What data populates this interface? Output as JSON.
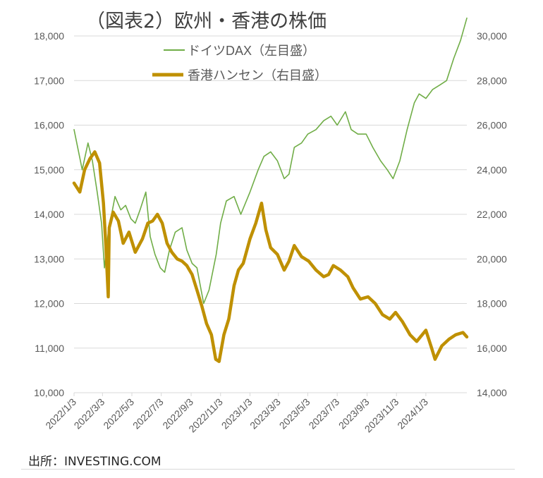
{
  "title": "（図表2）欧州・香港の株価",
  "source": "出所：INVESTING.COM",
  "colors": {
    "dax": "#70AD47",
    "hsi": "#BF9000",
    "grid": "#d9d9d9",
    "text": "#595959"
  },
  "chart_data": {
    "type": "line",
    "title": "（図表2）欧州・香港の株価",
    "x_ticks": [
      "2022/1/3",
      "2022/3/3",
      "2022/5/3",
      "2022/7/3",
      "2022/9/3",
      "2022/11/3",
      "2023/1/3",
      "2023/3/3",
      "2023/5/3",
      "2023/7/3",
      "2023/9/3",
      "2023/11/3",
      "2024/1/3"
    ],
    "y_left": {
      "ticks": [
        "10,000",
        "11,000",
        "12,000",
        "13,000",
        "14,000",
        "15,000",
        "16,000",
        "17,000",
        "18,000"
      ],
      "range": [
        10000,
        18000
      ]
    },
    "y_right": {
      "ticks": [
        "14,000",
        "16,000",
        "18,000",
        "20,000",
        "22,000",
        "24,000",
        "26,000",
        "28,000",
        "30,000"
      ],
      "range": [
        14000,
        30000
      ]
    },
    "grid": true,
    "legend_position": "top",
    "series": [
      {
        "name": "ドイツDAX（左目盛）",
        "axis": "left",
        "color": "#70AD47",
        "x": [
          "2022-01-03",
          "2022-01-20",
          "2022-02-01",
          "2022-02-10",
          "2022-02-20",
          "2022-03-01",
          "2022-03-07",
          "2022-03-15",
          "2022-03-29",
          "2022-04-10",
          "2022-04-20",
          "2022-05-01",
          "2022-05-10",
          "2022-05-20",
          "2022-06-01",
          "2022-06-10",
          "2022-06-20",
          "2022-07-01",
          "2022-07-10",
          "2022-07-20",
          "2022-08-01",
          "2022-08-15",
          "2022-08-25",
          "2022-09-05",
          "2022-09-15",
          "2022-09-29",
          "2022-10-10",
          "2022-10-25",
          "2022-11-03",
          "2022-11-15",
          "2022-12-01",
          "2022-12-15",
          "2023-01-03",
          "2023-01-20",
          "2023-02-01",
          "2023-02-15",
          "2023-03-01",
          "2023-03-15",
          "2023-03-25",
          "2023-04-05",
          "2023-04-20",
          "2023-05-03",
          "2023-05-20",
          "2023-06-05",
          "2023-06-20",
          "2023-07-03",
          "2023-07-20",
          "2023-08-01",
          "2023-08-15",
          "2023-09-01",
          "2023-09-15",
          "2023-10-01",
          "2023-10-15",
          "2023-10-27",
          "2023-11-10",
          "2023-11-25",
          "2023-12-10",
          "2023-12-20",
          "2024-01-03",
          "2024-01-17",
          "2024-02-01",
          "2024-02-15",
          "2024-03-01",
          "2024-03-15",
          "2024-03-28"
        ],
        "values": [
          15900,
          15000,
          15600,
          15200,
          14500,
          13800,
          12800,
          13600,
          14400,
          14100,
          14200,
          13900,
          13800,
          14100,
          14500,
          13500,
          13100,
          12800,
          12700,
          13200,
          13600,
          13700,
          13200,
          12900,
          12800,
          12000,
          12300,
          13100,
          13800,
          14300,
          14400,
          14000,
          14500,
          15000,
          15300,
          15400,
          15200,
          14800,
          14900,
          15500,
          15600,
          15800,
          15900,
          16100,
          16200,
          16000,
          16300,
          15900,
          15800,
          15800,
          15500,
          15200,
          15000,
          14800,
          15200,
          15900,
          16500,
          16700,
          16600,
          16800,
          16900,
          17000,
          17500,
          17900,
          18400
        ]
      },
      {
        "name": "香港ハンセン（右目盛）",
        "axis": "right",
        "color": "#BF9000",
        "x": [
          "2022-01-03",
          "2022-01-15",
          "2022-01-25",
          "2022-02-05",
          "2022-02-15",
          "2022-02-25",
          "2022-03-05",
          "2022-03-10",
          "2022-03-15",
          "2022-03-17",
          "2022-03-25",
          "2022-04-05",
          "2022-04-15",
          "2022-04-27",
          "2022-05-10",
          "2022-05-25",
          "2022-06-05",
          "2022-06-15",
          "2022-06-25",
          "2022-07-05",
          "2022-07-15",
          "2022-07-25",
          "2022-08-05",
          "2022-08-15",
          "2022-08-25",
          "2022-09-05",
          "2022-09-15",
          "2022-09-25",
          "2022-10-05",
          "2022-10-15",
          "2022-10-24",
          "2022-10-31",
          "2022-11-10",
          "2022-11-20",
          "2022-12-01",
          "2022-12-10",
          "2022-12-20",
          "2023-01-03",
          "2023-01-15",
          "2023-01-27",
          "2023-02-05",
          "2023-02-15",
          "2023-03-01",
          "2023-03-15",
          "2023-03-25",
          "2023-04-05",
          "2023-04-20",
          "2023-05-05",
          "2023-05-20",
          "2023-06-05",
          "2023-06-15",
          "2023-06-25",
          "2023-07-10",
          "2023-07-25",
          "2023-08-05",
          "2023-08-20",
          "2023-09-05",
          "2023-09-20",
          "2023-10-05",
          "2023-10-20",
          "2023-11-01",
          "2023-11-15",
          "2023-12-01",
          "2023-12-15",
          "2024-01-03",
          "2024-01-15",
          "2024-01-22",
          "2024-02-05",
          "2024-02-20",
          "2024-03-05",
          "2024-03-20",
          "2024-03-28"
        ],
        "values": [
          23400,
          23000,
          24000,
          24500,
          24800,
          24300,
          22500,
          20600,
          18300,
          21400,
          22100,
          21700,
          20700,
          21200,
          20300,
          20900,
          21600,
          21700,
          22000,
          21600,
          20700,
          20300,
          20000,
          19900,
          19700,
          19300,
          18600,
          17900,
          17100,
          16600,
          15500,
          15400,
          16600,
          17300,
          18800,
          19500,
          19800,
          20900,
          21600,
          22500,
          21300,
          20500,
          20200,
          19500,
          19900,
          20600,
          20100,
          19900,
          19500,
          19200,
          19300,
          19700,
          19500,
          19200,
          18700,
          18200,
          18300,
          18000,
          17500,
          17300,
          17600,
          17200,
          16600,
          16300,
          16800,
          16000,
          15500,
          16100,
          16400,
          16600,
          16700,
          16500
        ]
      }
    ]
  }
}
